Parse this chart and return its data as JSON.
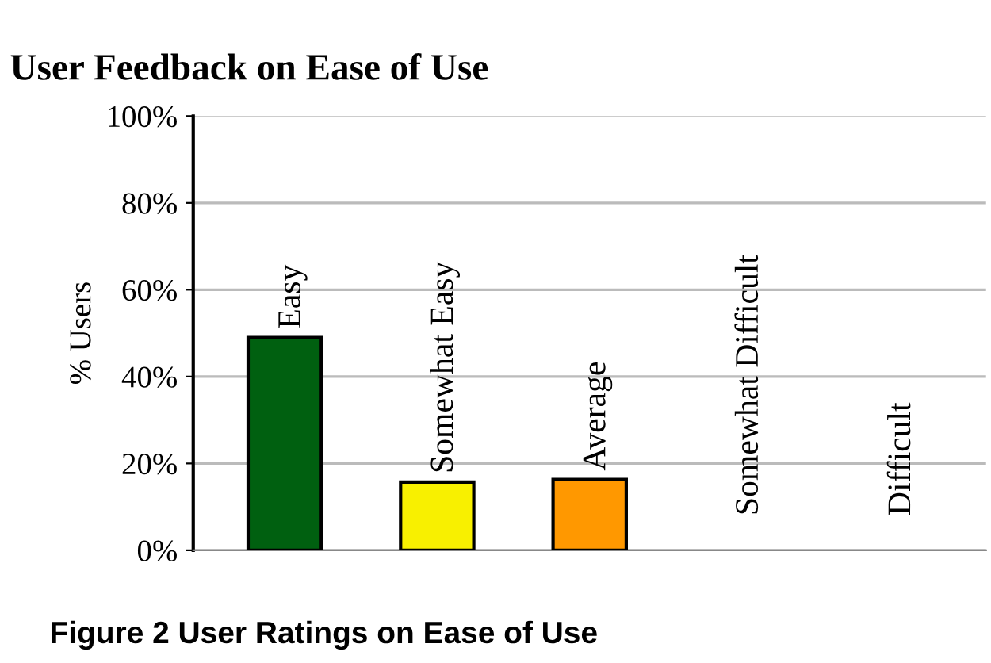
{
  "chart_data": {
    "type": "bar",
    "title": "User Feedback on Ease of Use",
    "ylabel": "% Users",
    "categories": [
      "Easy",
      "Somewhat Easy",
      "Average",
      "Somewhat Difficult",
      "Difficult"
    ],
    "values": [
      49,
      15.7,
      16.3,
      0,
      0
    ],
    "colors": [
      "#006010",
      "#f8f000",
      "#ff9800",
      null,
      null
    ],
    "ylim": [
      0,
      100
    ],
    "yticks": [
      {
        "value": 0,
        "label": "0%"
      },
      {
        "value": 20,
        "label": "20%"
      },
      {
        "value": 40,
        "label": "40%"
      },
      {
        "value": 60,
        "label": "60%"
      },
      {
        "value": 80,
        "label": "80%"
      },
      {
        "value": 100,
        "label": "100%"
      }
    ],
    "grid": "y",
    "legend": false,
    "annotations": [
      "Figure 2 User Ratings on Ease of Use"
    ]
  }
}
